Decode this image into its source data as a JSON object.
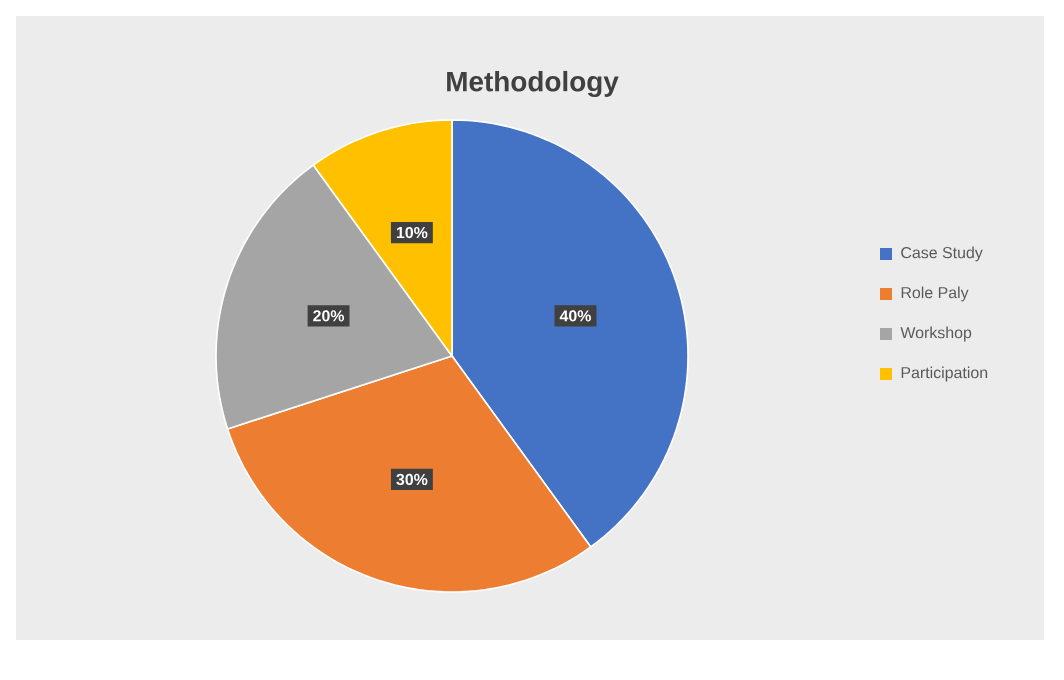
{
  "chart_data": {
    "type": "pie",
    "title": "Methodology",
    "categories": [
      "Case Study",
      "Role Paly",
      "Workshop",
      "Participation"
    ],
    "values": [
      40,
      30,
      20,
      10
    ],
    "colors": [
      "#4472c4",
      "#ed7d31",
      "#a5a5a5",
      "#ffc000"
    ],
    "value_labels": [
      "40%",
      "30%",
      "20%",
      "10%"
    ],
    "legend": "right"
  }
}
